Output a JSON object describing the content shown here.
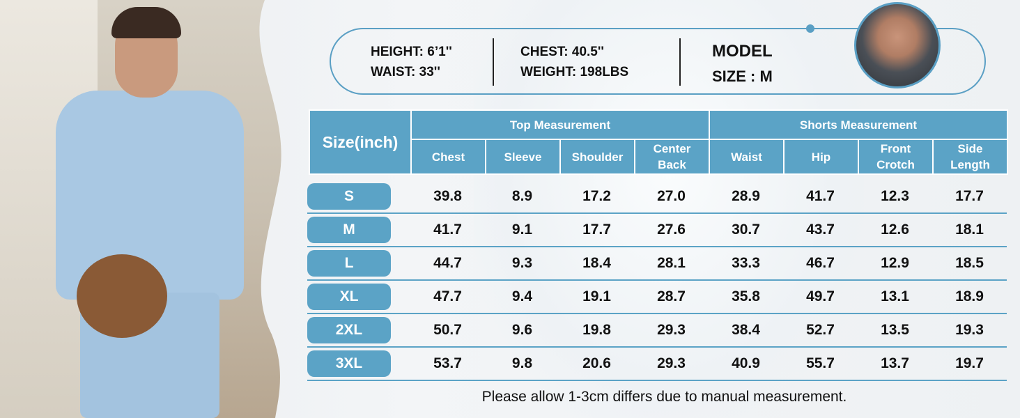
{
  "model": {
    "height": "HEIGHT: 6’1''",
    "waist": "WAIST: 33''",
    "chest": "CHEST: 40.5''",
    "weight": "WEIGHT: 198LBS",
    "model_label": "MODEL",
    "size_label": "SIZE : M"
  },
  "colors": {
    "accent": "#5ba3c6"
  },
  "table": {
    "size_header": "Size(inch)",
    "groups": [
      "Top Measurement",
      "Shorts Measurement"
    ],
    "columns": [
      [
        "Chest"
      ],
      [
        "Sleeve"
      ],
      [
        "Shoulder"
      ],
      [
        "Center",
        "Back"
      ],
      [
        "Waist"
      ],
      [
        "Hip"
      ],
      [
        "Front",
        "Crotch"
      ],
      [
        "Side",
        "Length"
      ]
    ],
    "rows": [
      {
        "size": "S",
        "values": [
          "39.8",
          "8.9",
          "17.2",
          "27.0",
          "28.9",
          "41.7",
          "12.3",
          "17.7"
        ]
      },
      {
        "size": "M",
        "values": [
          "41.7",
          "9.1",
          "17.7",
          "27.6",
          "30.7",
          "43.7",
          "12.6",
          "18.1"
        ]
      },
      {
        "size": "L",
        "values": [
          "44.7",
          "9.3",
          "18.4",
          "28.1",
          "33.3",
          "46.7",
          "12.9",
          "18.5"
        ]
      },
      {
        "size": "XL",
        "values": [
          "47.7",
          "9.4",
          "19.1",
          "28.7",
          "35.8",
          "49.7",
          "13.1",
          "18.9"
        ]
      },
      {
        "size": "2XL",
        "values": [
          "50.7",
          "9.6",
          "19.8",
          "29.3",
          "38.4",
          "52.7",
          "13.5",
          "19.3"
        ]
      },
      {
        "size": "3XL",
        "values": [
          "53.7",
          "9.8",
          "20.6",
          "29.3",
          "40.9",
          "55.7",
          "13.7",
          "19.7"
        ]
      }
    ]
  },
  "note": "Please allow 1-3cm differs due to manual measurement."
}
